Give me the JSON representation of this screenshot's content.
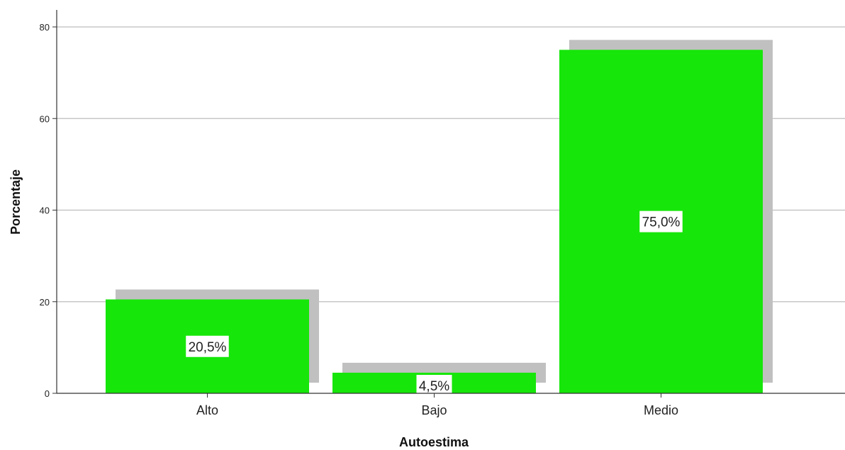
{
  "chart_data": {
    "type": "bar",
    "categories": [
      "Alto",
      "Bajo",
      "Medio"
    ],
    "values": [
      20.5,
      4.5,
      75.0
    ],
    "data_labels": [
      "20,5%",
      "4,5%",
      "75,0%"
    ],
    "title": "",
    "xlabel": "Autoestima",
    "ylabel": "Porcentaje",
    "ylim": [
      0,
      80
    ],
    "yticks": [
      0,
      20,
      40,
      60,
      80
    ],
    "grid": true,
    "bar_color": "#16e60a",
    "shadow_color": "#c0c0c0",
    "gridline_color": "#bdbdbd"
  }
}
